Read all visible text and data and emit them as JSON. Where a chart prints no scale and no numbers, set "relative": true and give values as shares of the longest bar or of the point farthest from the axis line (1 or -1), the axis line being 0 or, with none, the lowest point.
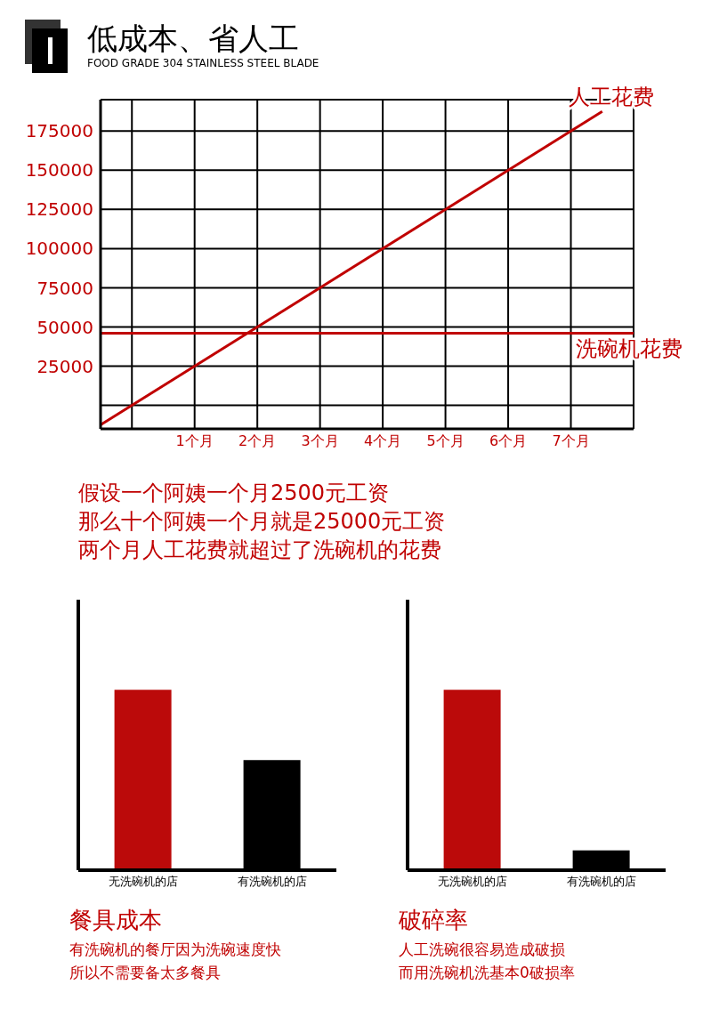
{
  "chart_data": [
    {
      "type": "line",
      "title": "低成本、省人工",
      "subtitle": "FOOD GRADE 304 STAINLESS STEEL BLADE",
      "series": [
        {
          "name": "人工花费",
          "color": "#c00000",
          "x": [
            -0.5,
            7.5
          ],
          "values": [
            -12500,
            187500
          ]
        }
      ],
      "xlim": [
        -0.5,
        8
      ],
      "xticks": [
        {
          "value": 0,
          "label": null
        },
        {
          "value": 1,
          "label": "1个月"
        },
        {
          "value": 2,
          "label": "2个月"
        },
        {
          "value": 3,
          "label": "3个月"
        },
        {
          "value": 4,
          "label": "4个月"
        },
        {
          "value": 5,
          "label": "5个月"
        },
        {
          "value": 6,
          "label": "6个月"
        },
        {
          "value": 7,
          "label": "7个月"
        }
      ],
      "ylim": [
        -15000,
        195000
      ],
      "yticks": [
        {
          "value": 0,
          "label": null
        },
        25000,
        50000,
        75000,
        100000,
        125000,
        150000,
        175000
      ],
      "ref_lines": [
        {
          "axis": "y",
          "value": 46000,
          "label": "洗碗机花费",
          "color": "#c00000"
        }
      ],
      "grid": true,
      "annotations": [
        "假设一个阿姨一个月2500元工资",
        "那么十个阿姨一个月就是25000元工资",
        "两个月人工花费就超过了洗碗机的花费"
      ]
    },
    {
      "type": "bar",
      "relative": true,
      "title": "餐具成本",
      "categories": [
        "无洗碗机的店",
        "有洗碗机的店"
      ],
      "values": [
        1,
        0.61
      ],
      "colors": [
        "#bb0a0a",
        "#000000"
      ],
      "annotations": [
        "有洗碗机的餐厅因为洗碗速度快",
        "所以不需要备太多餐具"
      ]
    },
    {
      "type": "bar",
      "relative": true,
      "title": "破碎率",
      "categories": [
        "无洗碗机的店",
        "有洗碗机的店"
      ],
      "values": [
        1,
        0.11
      ],
      "colors": [
        "#bb0a0a",
        "#000000"
      ],
      "annotations": [
        "人工洗碗很容易造成破损",
        "而用洗碗机洗基本0破损率"
      ]
    }
  ]
}
